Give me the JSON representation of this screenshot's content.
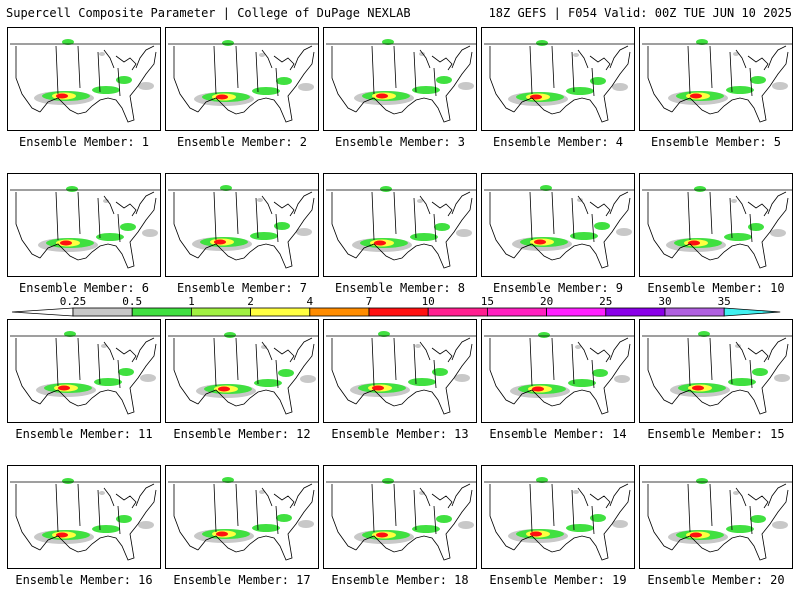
{
  "header": {
    "left": "Supercell Composite Parameter | College of DuPage NEXLAB",
    "right": "18Z GEFS | F054 Valid: 00Z TUE JUN 10 2025"
  },
  "members": [
    {
      "label": "Ensemble Member: 1"
    },
    {
      "label": "Ensemble Member: 2"
    },
    {
      "label": "Ensemble Member: 3"
    },
    {
      "label": "Ensemble Member: 4"
    },
    {
      "label": "Ensemble Member: 5"
    },
    {
      "label": "Ensemble Member: 6"
    },
    {
      "label": "Ensemble Member: 7"
    },
    {
      "label": "Ensemble Member: 8"
    },
    {
      "label": "Ensemble Member: 9"
    },
    {
      "label": "Ensemble Member: 10"
    },
    {
      "label": "Ensemble Member: 11"
    },
    {
      "label": "Ensemble Member: 12"
    },
    {
      "label": "Ensemble Member: 13"
    },
    {
      "label": "Ensemble Member: 14"
    },
    {
      "label": "Ensemble Member: 15"
    },
    {
      "label": "Ensemble Member: 16"
    },
    {
      "label": "Ensemble Member: 17"
    },
    {
      "label": "Ensemble Member: 18"
    },
    {
      "label": "Ensemble Member: 19"
    },
    {
      "label": "Ensemble Member: 20"
    }
  ],
  "colorbar": {
    "ticks": [
      "0.25",
      "0.5",
      "1",
      "2",
      "4",
      "7",
      "10",
      "15",
      "20",
      "25",
      "30",
      "35"
    ],
    "colors": [
      "#c8c8c8",
      "#40e040",
      "#a0f040",
      "#ffff40",
      "#ff8c00",
      "#ff1010",
      "#ff2090",
      "#ff20c0",
      "#ff20ff",
      "#8a00e8",
      "#b060e0",
      "#40f0f0"
    ]
  }
}
